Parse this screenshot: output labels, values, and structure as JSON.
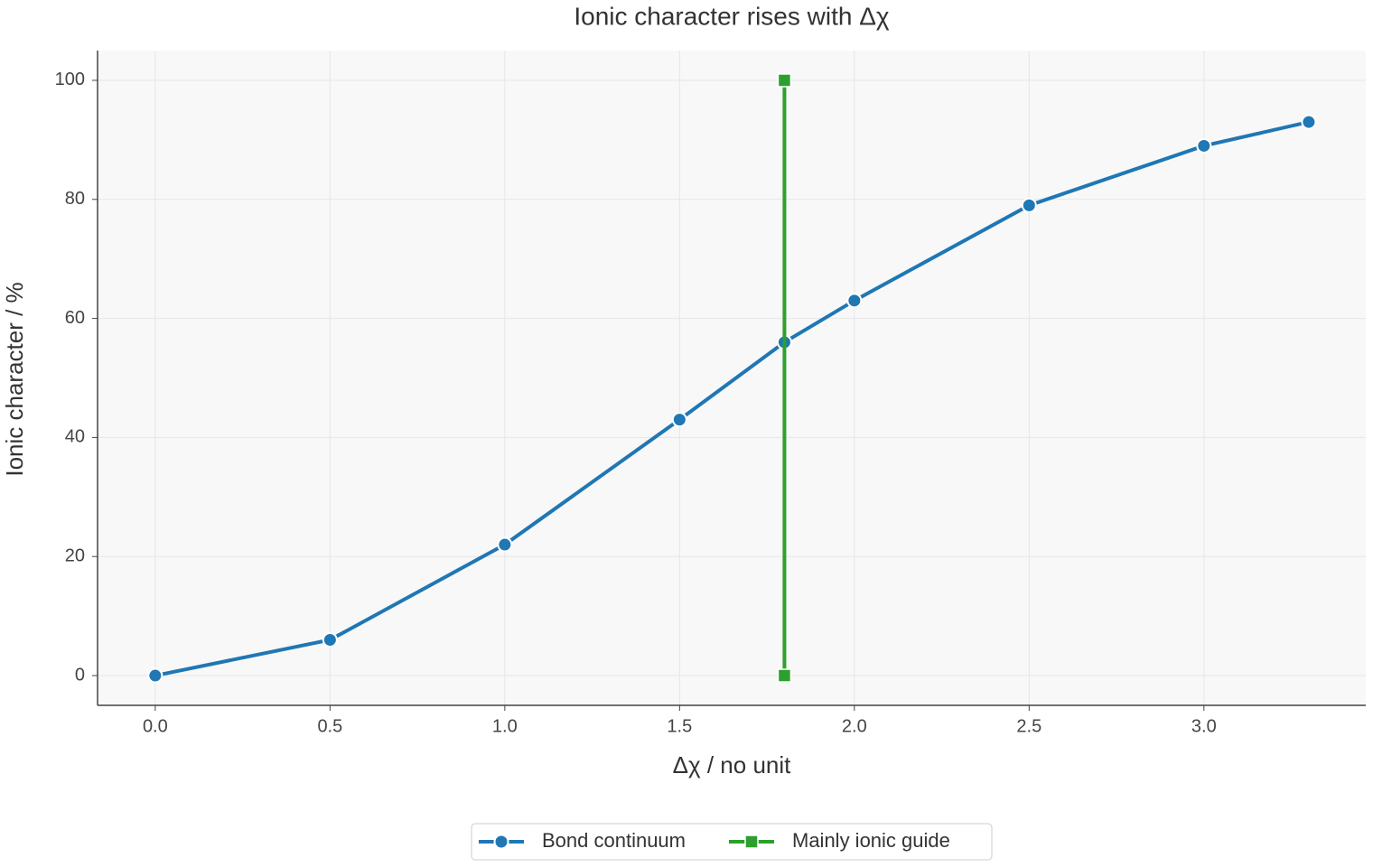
{
  "chart_data": {
    "type": "line",
    "title": "Ionic character rises with Δχ",
    "x_label": "Δχ / no unit",
    "y_label": "Ionic character / %",
    "series": [
      {
        "name": "Bond continuum",
        "color": "#1f77b4",
        "marker": "circle",
        "x": [
          0,
          0.5,
          1,
          1.5,
          1.8,
          2,
          2.5,
          3,
          3.3
        ],
        "values": [
          0,
          6,
          22,
          43,
          56,
          63,
          79,
          89,
          93
        ]
      },
      {
        "name": "Mainly ionic guide",
        "color": "#2ca02c",
        "marker": "square",
        "x": [
          1.8,
          1.8
        ],
        "values": [
          0,
          100
        ]
      }
    ],
    "xlim": [
      -0.165,
      3.463
    ],
    "ylim": [
      -5,
      105
    ],
    "xticks": [
      {
        "value": 0,
        "label": "0.0"
      },
      0.5,
      {
        "value": 1,
        "label": "1.0"
      },
      1.5,
      {
        "value": 2,
        "label": "2.0"
      },
      2.5,
      {
        "value": 3,
        "label": "3.0"
      }
    ],
    "yticks": [
      0,
      20,
      40,
      60,
      80,
      100
    ],
    "grid": true,
    "legend": "bottom"
  }
}
